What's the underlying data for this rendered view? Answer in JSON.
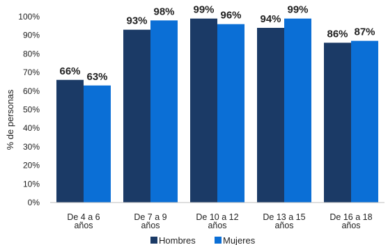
{
  "chart_data": {
    "type": "bar",
    "ylabel": "% de personas",
    "ylim": [
      0,
      100
    ],
    "yticks": [
      "0%",
      "10%",
      "20%",
      "30%",
      "40%",
      "50%",
      "60%",
      "70%",
      "80%",
      "90%",
      "100%"
    ],
    "grid": false,
    "legend_position": "bottom",
    "categories": [
      [
        "De 4 a 6",
        "años"
      ],
      [
        "De 7 a 9",
        "años"
      ],
      [
        "De 10 a 12",
        "años"
      ],
      [
        "De 13 a 15",
        "años"
      ],
      [
        "De 16 a 18",
        "años"
      ]
    ],
    "series": [
      {
        "name": "Hombres",
        "color": "#1b3a66",
        "values": [
          66,
          93,
          99,
          94,
          86
        ],
        "labels": [
          "66%",
          "93%",
          "99%",
          "94%",
          "86%"
        ]
      },
      {
        "name": "Mujeres",
        "color": "#0b6fd6",
        "values": [
          63,
          98,
          96,
          99,
          87
        ],
        "labels": [
          "63%",
          "98%",
          "96%",
          "99%",
          "87%"
        ]
      }
    ]
  }
}
